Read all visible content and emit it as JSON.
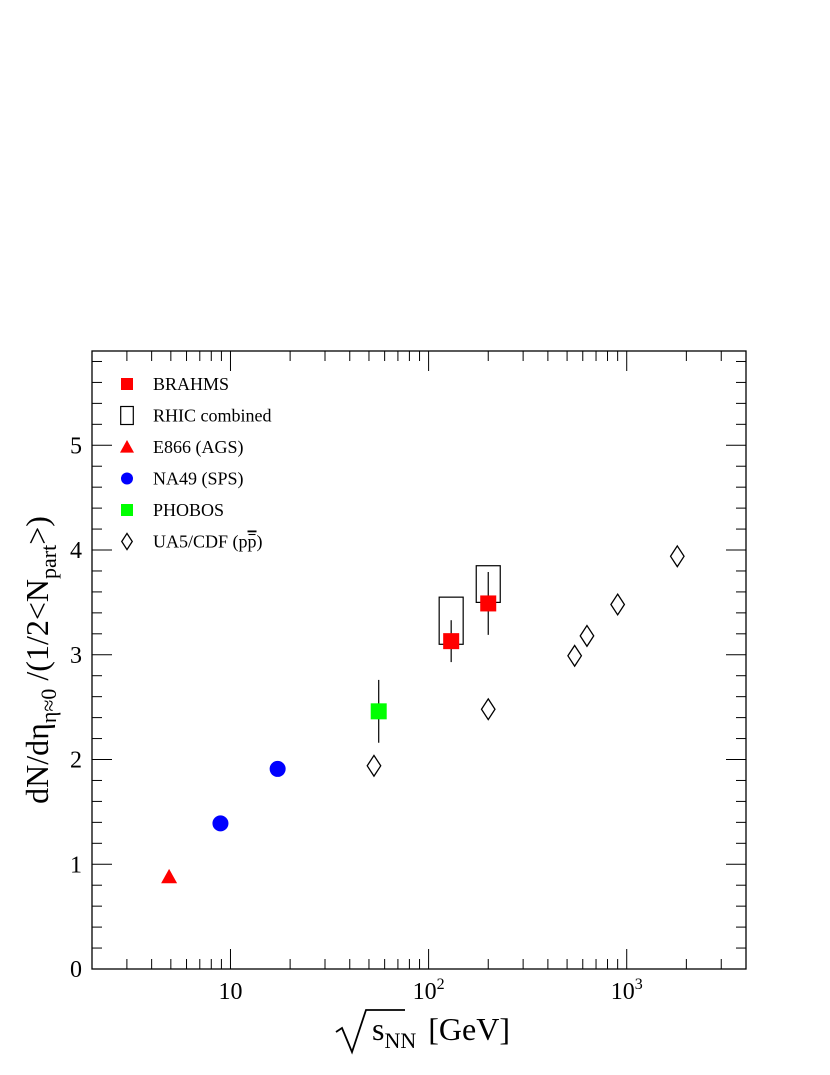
{
  "chart_data": {
    "type": "scatter",
    "xscale": "log",
    "xlim": [
      2,
      4000
    ],
    "ylim": [
      0,
      5.9
    ],
    "grid": false,
    "legend_position": "top-left",
    "xlabel": {
      "root": "s",
      "sub": "NN",
      "unit": "[GeV]"
    },
    "ylabel": {
      "main": "dN/d",
      "eta": "η",
      "eta_sub": "η≈0",
      "mid": "/(1/2<N",
      "part_sub": "part",
      "end": ">)"
    },
    "y_ticks": [
      "0",
      "1",
      "2",
      "3",
      "4",
      "5"
    ],
    "x_ticks": [
      {
        "value": 10,
        "base": "10",
        "exp": ""
      },
      {
        "value": 100,
        "base": "10",
        "exp": "2"
      },
      {
        "value": 1000,
        "base": "10",
        "exp": "3"
      }
    ],
    "series": [
      {
        "name": "BRAHMS",
        "marker": "square",
        "color": "#ff0000",
        "points": [
          {
            "x": 130,
            "y": 3.13,
            "err": 0.2,
            "sys": [
              3.1,
              3.55
            ]
          },
          {
            "x": 200,
            "y": 3.49,
            "err": 0.3,
            "sys": [
              3.5,
              3.85
            ]
          }
        ]
      },
      {
        "name": "RHIC combined",
        "marker": "open-rect",
        "color": "#000000",
        "points": []
      },
      {
        "name": "E866 (AGS)",
        "marker": "triangle",
        "color": "#ff0000",
        "points": [
          {
            "x": 4.9,
            "y": 0.88
          }
        ]
      },
      {
        "name": "NA49 (SPS)",
        "marker": "circle",
        "color": "#0000ff",
        "points": [
          {
            "x": 8.9,
            "y": 1.39
          },
          {
            "x": 17.3,
            "y": 1.91
          }
        ]
      },
      {
        "name": "PHOBOS",
        "marker": "square",
        "color": "#00ff00",
        "points": [
          {
            "x": 56,
            "y": 2.46,
            "err": 0.3
          }
        ]
      },
      {
        "name": "UA5/CDF (p",
        "name_bar": "p",
        "name_end": ")",
        "marker": "diamond",
        "color": "#000000",
        "points": [
          {
            "x": 53,
            "y": 1.94
          },
          {
            "x": 200,
            "y": 2.48
          },
          {
            "x": 546,
            "y": 2.99
          },
          {
            "x": 630,
            "y": 3.18
          },
          {
            "x": 900,
            "y": 3.48
          },
          {
            "x": 1800,
            "y": 3.94
          }
        ]
      }
    ]
  }
}
